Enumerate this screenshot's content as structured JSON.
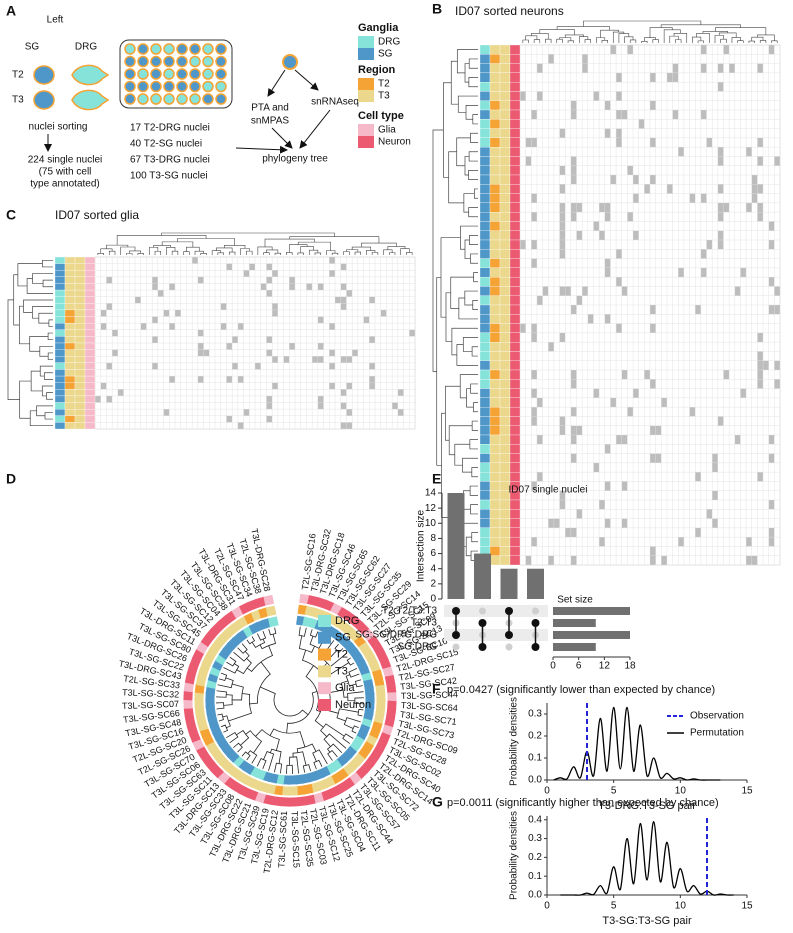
{
  "panel_labels": [
    "A",
    "B",
    "C",
    "D",
    "E",
    "F",
    "G"
  ],
  "panel_a": {
    "left": "Left",
    "ganglia_labels": [
      "SG",
      "DRG"
    ],
    "region_labels": [
      "T2",
      "T3"
    ],
    "sorting": "nuclei sorting",
    "nuclei_lines": [
      "224 single nuclei",
      "(75 with cell",
      "type annotated)"
    ],
    "counts": [
      "17 T2-DRG nuclei",
      "40 T2-SG nuclei",
      "67 T3-DRG nuclei",
      "100 T3-SG nuclei"
    ],
    "methods": [
      "PTA and",
      "snMPAS",
      "snRNAseq"
    ],
    "output": "phylogeny tree"
  },
  "legend": {
    "groups": [
      {
        "title": "Ganglia",
        "items": [
          {
            "label": "DRG",
            "color": "#86e3da"
          },
          {
            "label": "SG",
            "color": "#4f97c8"
          }
        ]
      },
      {
        "title": "Region",
        "items": [
          {
            "label": "T2",
            "color": "#f4a334"
          },
          {
            "label": "T3",
            "color": "#ecd88c"
          }
        ]
      },
      {
        "title": "Cell type",
        "items": [
          {
            "label": "Glia",
            "color": "#f6b9c9"
          },
          {
            "label": "Neuron",
            "color": "#ec5a72"
          }
        ]
      }
    ]
  },
  "panel_b": {
    "title": "ID07 sorted neurons"
  },
  "panel_c": {
    "title": "ID07 sorted glia"
  },
  "panel_d": {
    "leaves": [
      "T2L-SG-SC16",
      "T3L-DRG-SC32",
      "T3L-DRG-SC18",
      "T3L-SG-SC46",
      "T3L-SG-SC65",
      "T3L-SG-SC62",
      "T3L-SG-SC27",
      "T3L-SG-SC35",
      "T3L-SG-SC29",
      "T2L-SG-SC14",
      "T3L-SG-SC15",
      "T3L-SG-SC09",
      "T3L-SG-SC13",
      "T3L-SG-SC16",
      "T2L-DRG-SC15",
      "T2L-SG-SC27",
      "T3L-SG-SC42",
      "T3L-SG-SC44",
      "T3L-SG-SC64",
      "T3L-SG-SC71",
      "T3L-SG-SC73",
      "T2L-DRG-SC09",
      "T2L-SG-SC28",
      "T3L-SG-SC02",
      "T2L-DRG-SC40",
      "T2L-DRG-SC14",
      "T3L-SG-SC72",
      "T3L-SG-SC05",
      "T3L-SG-SC57",
      "T2L-DRG-SC44",
      "T2L-DRG-SC11",
      "T3L-SG-SC04",
      "T3L-SG-SC25",
      "T3L-SG-SC12",
      "T2L-SG-SC03",
      "T2L-SG-SC35",
      "T3L-SG-SC15",
      "T3L-SG-SC61",
      "T2L-DRG-SC12",
      "T3L-SG-SC19",
      "T3L-SG-SC39",
      "T3L-DRG-SC21",
      "T3L-DRG-SC22",
      "T3L-SG-SC08",
      "T3L-SG-SC33",
      "T3L-DRG-SC13",
      "T3L-SG-SC11",
      "T3L-SG-SC63",
      "T3L-SG-SC06",
      "T3L-SG-SC70",
      "T2L-SG-SC26",
      "T2L-SG-SC20",
      "T3L-SG-SC16",
      "T3L-SG-SC48",
      "T3L-SG-SC66",
      "T3L-SG-SC07",
      "T3L-SG-SC32",
      "T2L-SG-SC33",
      "T3L-DRG-SC43",
      "T3L-SG-SC22",
      "T3L-DRG-SC26",
      "T3L-SG-SC80",
      "T3L-DRG-SC11",
      "T3L-SG-SC45",
      "T3L-SG-SC37",
      "T3L-SG-SC12",
      "T3L-SG-SC04",
      "T3L-SG-SC38",
      "T3L-DRG-SC31",
      "T2L-SG-SC47",
      "T3L-SG-SC34",
      "T2L-SG-SC38",
      "T3L-DRG-SC28"
    ],
    "cell_types": [
      "Glia",
      "Neuron",
      "Neuron",
      "Neuron",
      "Glia",
      "Neuron",
      "Neuron",
      "Neuron",
      "Neuron",
      "Glia",
      "Neuron",
      "Neuron",
      "Neuron",
      "Neuron",
      "Glia",
      "Neuron",
      "Neuron",
      "Glia",
      "Neuron",
      "Neuron",
      "Neuron",
      "Glia",
      "Neuron",
      "Neuron",
      "Neuron",
      "Neuron",
      "Neuron",
      "Neuron",
      "Glia",
      "Neuron",
      "Neuron",
      "Neuron",
      "Neuron",
      "Glia",
      "Neuron",
      "Neuron",
      "Neuron",
      "Neuron",
      "Neuron",
      "Neuron",
      "Glia",
      "Neuron",
      "Neuron",
      "Neuron",
      "Neuron",
      "Glia",
      "Neuron",
      "Neuron",
      "Neuron",
      "Neuron",
      "Glia",
      "Neuron",
      "Neuron",
      "Neuron",
      "Neuron",
      "Glia",
      "Neuron",
      "Glia",
      "Neuron",
      "Neuron",
      "Neuron",
      "Neuron",
      "Glia",
      "Neuron",
      "Neuron",
      "Neuron",
      "Neuron",
      "Neuron",
      "Glia",
      "Neuron",
      "Neuron",
      "Neuron",
      "Glia"
    ]
  },
  "chart_data": [
    {
      "type": "upset",
      "title": "ID07 single nuclei",
      "y_label": "Intersection size",
      "ylim": [
        0,
        14
      ],
      "yticks": [
        0,
        2,
        4,
        6,
        8,
        10,
        12,
        14
      ],
      "values": [
        14,
        6,
        4,
        4
      ],
      "color": "#707070",
      "sets": [
        "T2:T2/T3:T3",
        "T2:T3",
        "SG:SG/DRG:DRG",
        "SG:DRG"
      ],
      "memberships": [
        [
          0,
          2
        ],
        [
          1,
          3
        ],
        [
          0,
          2
        ],
        [
          1,
          3
        ]
      ],
      "set_sizes": [
        18,
        10,
        18,
        10
      ],
      "set_size_label": "Set size",
      "set_xlim": [
        0,
        18
      ],
      "set_xticks": [
        0,
        6,
        12,
        18
      ]
    },
    {
      "type": "line",
      "title": "p=0.0427 (significantly lower than expected by chance)",
      "y_label": "Probability densities",
      "x_label": "T3-DRG:T3-SG pair",
      "xlim": [
        0,
        15
      ],
      "xticks": [
        0,
        5,
        10,
        15
      ],
      "ylim": [
        0,
        0.35
      ],
      "yticks": [
        {
          "value": 0,
          "label": "0.0"
        },
        0.1,
        0.2,
        0.3
      ],
      "observation": {
        "name": "Observation",
        "color": "#2323d8",
        "x": 3
      },
      "series": [
        {
          "name": "Permutation",
          "color": "#000000",
          "x": [
            0.5,
            1,
            1.5,
            2,
            2.5,
            3,
            3.5,
            4,
            4.5,
            5,
            5.5,
            6,
            6.5,
            7,
            7.5,
            8,
            8.5,
            9,
            9.5,
            10,
            10.5,
            11,
            11.5,
            12,
            12.5,
            13
          ],
          "values": [
            0,
            0.01,
            0.005,
            0.06,
            0.01,
            0.13,
            0.02,
            0.28,
            0.04,
            0.33,
            0.05,
            0.33,
            0.04,
            0.25,
            0.02,
            0.1,
            0.01,
            0.03,
            0.005,
            0.01,
            0,
            0.005,
            0,
            0,
            0,
            0
          ]
        }
      ],
      "legend": "upper right"
    },
    {
      "type": "line",
      "title": "p=0.0011 (significantly higher than expected by chance)",
      "y_label": "Probability densities",
      "x_label": "T3-SG:T3-SG pair",
      "xlim": [
        0,
        15
      ],
      "xticks": [
        0,
        5,
        10,
        15
      ],
      "ylim": [
        0,
        0.42
      ],
      "yticks": [
        {
          "value": 0,
          "label": "0.0"
        },
        0.1,
        0.2,
        0.3,
        0.4
      ],
      "observation": {
        "name": "Observation",
        "color": "#2323d8",
        "x": 12
      },
      "series": [
        {
          "name": "Permutation",
          "color": "#000000",
          "x": [
            1,
            1.5,
            2,
            2.5,
            3,
            3.5,
            4,
            4.5,
            5,
            5.5,
            6,
            6.5,
            7,
            7.5,
            8,
            8.5,
            9,
            9.5,
            10,
            10.5,
            11,
            11.5,
            12,
            12.5,
            13,
            13.5,
            14
          ],
          "values": [
            0,
            0,
            0,
            0,
            0.01,
            0.003,
            0.05,
            0.01,
            0.15,
            0.03,
            0.3,
            0.06,
            0.38,
            0.08,
            0.39,
            0.07,
            0.28,
            0.04,
            0.14,
            0.02,
            0.05,
            0.005,
            0.02,
            0,
            0.005,
            0,
            0
          ]
        }
      ]
    }
  ]
}
